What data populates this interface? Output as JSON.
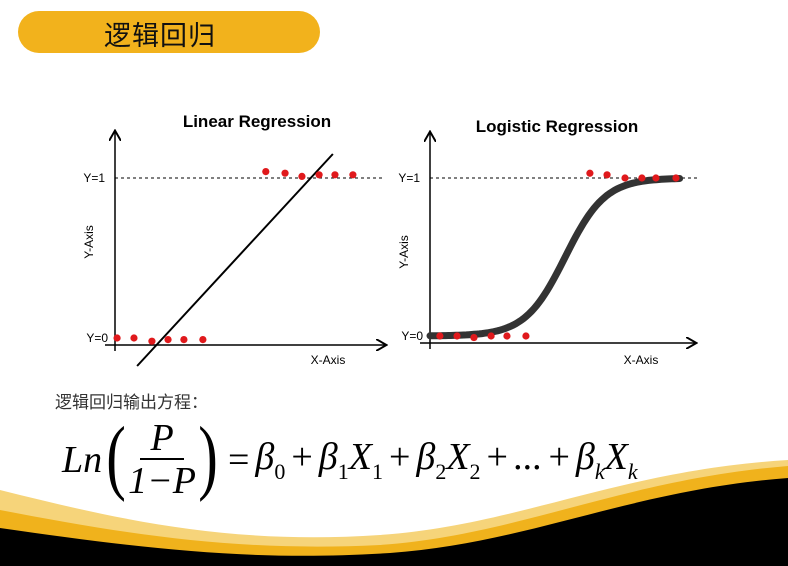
{
  "header": {
    "title": "逻辑回归"
  },
  "chart_data": [
    {
      "type": "scatter",
      "title": "Linear Regression",
      "xlabel": "X-Axis",
      "ylabel": "Y-Axis",
      "ytick_labels": [
        "Y=0",
        "Y=1"
      ],
      "grid": false,
      "points": [
        {
          "x": 0.08,
          "y": 0.0
        },
        {
          "x": 0.73,
          "y": 0.0
        },
        {
          "x": 1.42,
          "y": -0.02
        },
        {
          "x": 2.04,
          "y": -0.01
        },
        {
          "x": 2.65,
          "y": -0.01
        },
        {
          "x": 3.38,
          "y": -0.01
        },
        {
          "x": 5.8,
          "y": 1.04
        },
        {
          "x": 6.54,
          "y": 1.03
        },
        {
          "x": 7.19,
          "y": 1.01
        },
        {
          "x": 7.85,
          "y": 1.02
        },
        {
          "x": 8.46,
          "y": 1.02
        },
        {
          "x": 9.15,
          "y": 1.02
        }
      ],
      "fit_line": {
        "type": "linear",
        "x": [
          0.85,
          8.38
        ],
        "y": [
          -0.175,
          1.15
        ]
      },
      "point_color": "#e0191c",
      "line_color": "#000000"
    },
    {
      "type": "scatter",
      "title": "Logistic Regression",
      "xlabel": "X-Axis",
      "ylabel": "Y-Axis",
      "ytick_labels": [
        "Y=0",
        "Y=1"
      ],
      "grid": false,
      "points": [
        {
          "x": 0.38,
          "y": 0.0
        },
        {
          "x": 1.04,
          "y": 0.0
        },
        {
          "x": 1.69,
          "y": -0.01
        },
        {
          "x": 2.35,
          "y": 0.0
        },
        {
          "x": 2.96,
          "y": 0.0
        },
        {
          "x": 3.69,
          "y": 0.0
        },
        {
          "x": 6.15,
          "y": 1.03
        },
        {
          "x": 6.81,
          "y": 1.02
        },
        {
          "x": 7.5,
          "y": 1.0
        },
        {
          "x": 8.15,
          "y": 1.0
        },
        {
          "x": 8.69,
          "y": 1.0
        },
        {
          "x": 9.46,
          "y": 1.0
        }
      ],
      "fit_curve": {
        "type": "sigmoid",
        "midpoint": 5.2,
        "steepness": 1.3,
        "x_range": [
          0,
          9.6
        ]
      },
      "point_color": "#e0191c",
      "curve_color": "#333333"
    }
  ],
  "formula": {
    "caption": "逻辑回归输出方程：",
    "lhs_fn": "Ln",
    "lparen": "(",
    "rparen": ")",
    "numerator": "P",
    "denominator": "1−P",
    "equals": "=",
    "terms": [
      {
        "coef": "β",
        "coef_sub": "0",
        "var": "",
        "var_sub": ""
      },
      {
        "coef": "β",
        "coef_sub": "1",
        "var": "X",
        "var_sub": "1"
      },
      {
        "coef": "β",
        "coef_sub": "2",
        "var": "X",
        "var_sub": "2"
      },
      {
        "coef": "...",
        "coef_sub": "",
        "var": "",
        "var_sub": ""
      },
      {
        "coef": "β",
        "coef_sub": "k",
        "var": "X",
        "var_sub": "k"
      }
    ],
    "plus": "+"
  },
  "colors": {
    "accent": "#f2b21c",
    "wave_dark": "#000000",
    "points": "#e0191c"
  }
}
